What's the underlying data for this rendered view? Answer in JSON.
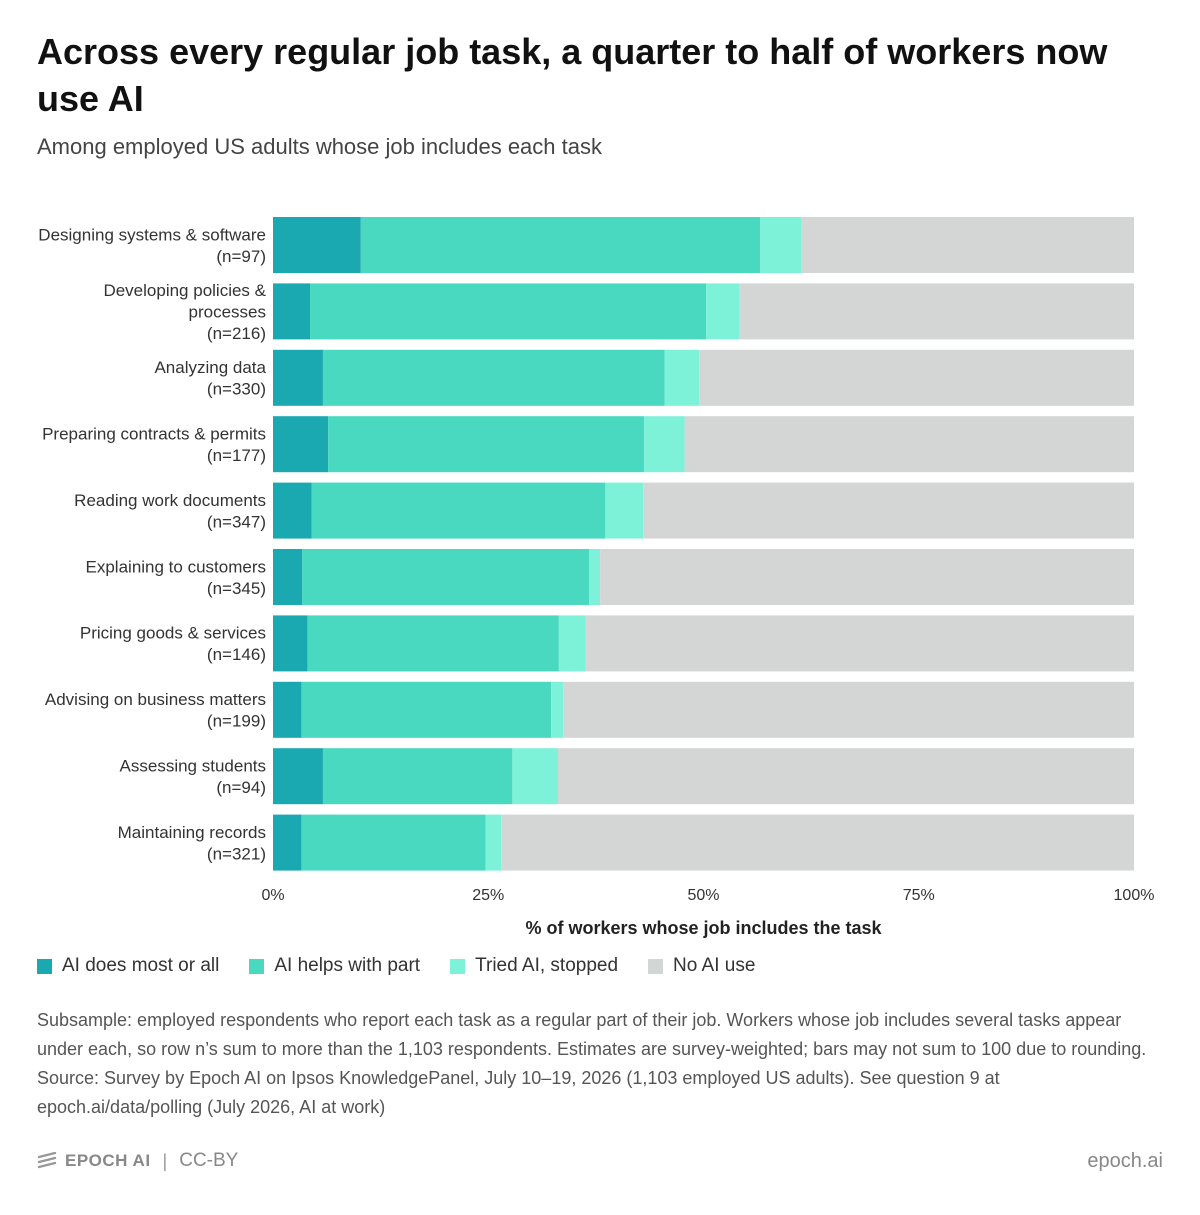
{
  "header": {
    "title": "Across every regular job task, a quarter to half of workers now use AI",
    "subtitle": "Among employed US adults whose job includes each task"
  },
  "chart_data": {
    "type": "bar",
    "orientation": "horizontal",
    "stacked": true,
    "categories": [
      [
        "Designing systems & software",
        "(n=97)"
      ],
      [
        "Developing policies &",
        "processes",
        "(n=216)"
      ],
      [
        "Analyzing data",
        "(n=330)"
      ],
      [
        "Preparing contracts & permits",
        "(n=177)"
      ],
      [
        "Reading work documents",
        "(n=347)"
      ],
      [
        "Explaining to customers",
        "(n=345)"
      ],
      [
        "Pricing goods & services",
        "(n=146)"
      ],
      [
        "Advising on business matters",
        "(n=199)"
      ],
      [
        "Assessing students",
        "(n=94)"
      ],
      [
        "Maintaining records",
        "(n=321)"
      ]
    ],
    "series": [
      {
        "name": "AI does most or all",
        "color": "#1aa9b0",
        "values": [
          10.2,
          4.3,
          5.8,
          6.4,
          4.5,
          3.4,
          4.0,
          3.3,
          5.8,
          3.3
        ]
      },
      {
        "name": "AI helps with part",
        "color": "#49d8c0",
        "values": [
          46.4,
          46.0,
          39.7,
          36.7,
          34.1,
          33.3,
          29.2,
          29.0,
          22.0,
          21.4
        ]
      },
      {
        "name": "Tried AI, stopped",
        "color": "#7ef2d8",
        "values": [
          4.8,
          3.9,
          4.0,
          4.7,
          4.4,
          1.3,
          3.1,
          1.4,
          5.3,
          1.8
        ]
      },
      {
        "name": "No AI use",
        "color": "#d4d6d5",
        "values": [
          38.6,
          45.8,
          50.5,
          52.2,
          57.0,
          62.0,
          63.7,
          66.3,
          66.9,
          73.5
        ]
      }
    ],
    "xlabel": "% of workers whose job includes the task",
    "xlim": [
      0,
      100
    ],
    "xticks": [
      0,
      25,
      50,
      75,
      100
    ],
    "xtick_labels": [
      "0%",
      "25%",
      "50%",
      "75%",
      "100%"
    ],
    "grid": false,
    "legend_position": "bottom-left"
  },
  "note": "Subsample: employed respondents who report each task as a regular part of their job. Workers whose job includes several tasks appear under each, so row n’s sum to more than the 1,103 respondents. Estimates are survey-weighted; bars may not sum to 100 due to rounding. Source: Survey by Epoch AI on Ipsos KnowledgePanel, July 10–19, 2026 (1,103 employed US adults). See question 9 at epoch.ai/data/polling (July 2026, AI at work)",
  "footer": {
    "brand": "EPOCH AI",
    "separator": "|",
    "license": "CC-BY",
    "site": "epoch.ai",
    "logo_icon": "epoch-logo-icon"
  }
}
